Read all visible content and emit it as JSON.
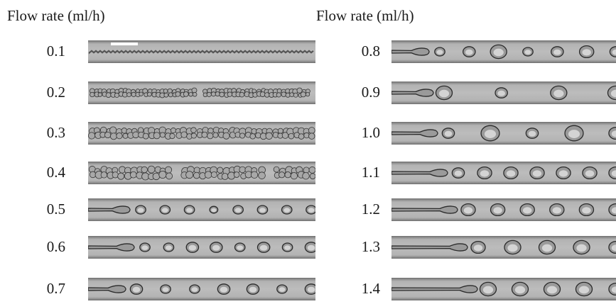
{
  "left_panel": {
    "header": "Flow rate (ml/h)",
    "rows": [
      {
        "rate": "0.1",
        "pattern": "chain"
      },
      {
        "rate": "0.2",
        "pattern": "small-dense"
      },
      {
        "rate": "0.3",
        "pattern": "medium-dense"
      },
      {
        "rate": "0.4",
        "pattern": "large-dense"
      },
      {
        "rate": "0.5",
        "pattern": "dripping",
        "drops": [
          1,
          1,
          1,
          0.8,
          1,
          1,
          1,
          1
        ]
      },
      {
        "rate": "0.6",
        "pattern": "dripping",
        "drops": [
          1,
          1,
          1.2,
          1.2,
          1,
          1.2,
          1,
          1.2
        ]
      },
      {
        "rate": "0.7",
        "pattern": "dripping",
        "drops": [
          1.2,
          1,
          1,
          1.2,
          1.2,
          1,
          1.2
        ]
      }
    ]
  },
  "right_panel": {
    "header": "Flow rate (ml/h)",
    "rows": [
      {
        "rate": "0.8",
        "pattern": "dripping",
        "drops": [
          1,
          1.2,
          1.6,
          1,
          1.2,
          1.4,
          1.2
        ]
      },
      {
        "rate": "0.9",
        "pattern": "dripping",
        "drops": [
          1.6,
          1.2,
          1.6,
          1.6
        ]
      },
      {
        "rate": "1.0",
        "pattern": "dripping",
        "drops": [
          1.2,
          1.8,
          1.2,
          1.8,
          1.4
        ]
      },
      {
        "rate": "1.1",
        "pattern": "jetting",
        "drops": [
          1.2,
          1.4,
          1.4,
          1.4,
          1.4,
          1.4,
          1.4
        ]
      },
      {
        "rate": "1.2",
        "pattern": "jetting",
        "drops": [
          1.4,
          1.4,
          1.4,
          1.4,
          1.4,
          1.4
        ]
      },
      {
        "rate": "1.3",
        "pattern": "jetting",
        "drops": [
          1.4,
          1.6,
          1.6,
          1.6,
          1.4
        ]
      },
      {
        "rate": "1.4",
        "pattern": "jetting",
        "drops": [
          1.6,
          1.6,
          1.6,
          1.6,
          1.4
        ]
      }
    ]
  }
}
